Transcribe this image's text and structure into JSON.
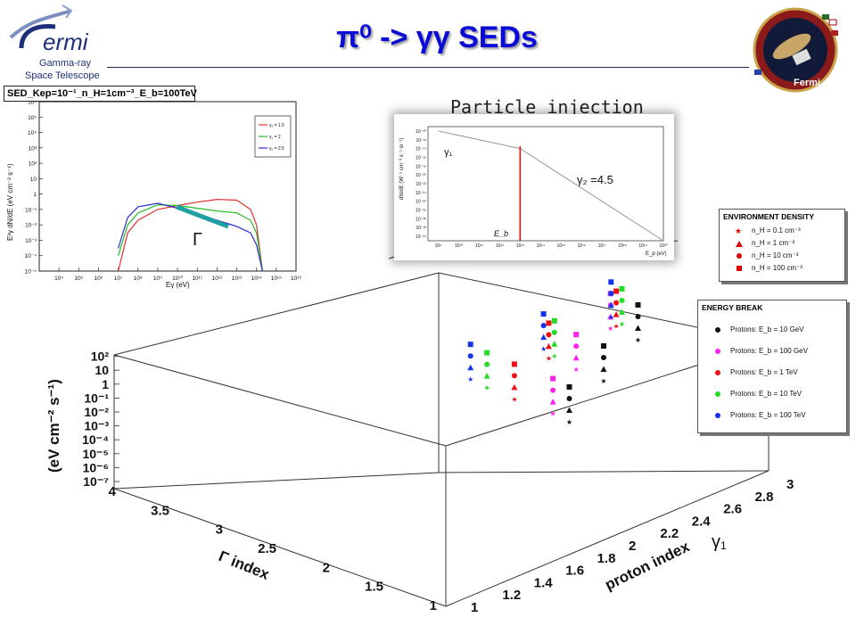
{
  "header": {
    "title": "π⁰ -> γγ SEDs",
    "left_logo_text": [
      "ermi",
      "Gamma-ray",
      "Space Telescope"
    ],
    "right_badge_text": [
      "Gamma-ray Space Telescope",
      "Fermi"
    ]
  },
  "sed_panel": {
    "title": "SED_Kep=10⁻¹_n_H=1cm⁻³_E_b=100TeV",
    "ylabel": "E²γ dN/dE (eV cm⁻² s⁻¹)",
    "xlabel": "Eγ (eV)",
    "gamma_label": "Γ",
    "legend": [
      "γ₁ = 1.5",
      "γ₁ = 2",
      "γ₁ = 2.5"
    ]
  },
  "injection_panel": {
    "caption": "Particle injection",
    "gamma1_label": "γ₁",
    "gamma2_label": "γ₂ =4.5",
    "break_label": "E_b",
    "ylabel": "dN/dE (W⁻¹ cm⁻³ s⁻¹ sr⁻¹)",
    "xlabel": "E_p (eV)"
  },
  "env_legend": {
    "title": "ENVIRONMENT DENSITY",
    "items": [
      {
        "marker": "star",
        "label": "n_H = 0.1 cm⁻³"
      },
      {
        "marker": "triangle",
        "label": "n_H = 1 cm⁻³"
      },
      {
        "marker": "circle",
        "label": "n_H = 10 cm⁻³"
      },
      {
        "marker": "square",
        "label": "n_H = 100 cm⁻³"
      }
    ],
    "color": "#dd0000"
  },
  "eb_legend": {
    "title": "ENERGY BREAK",
    "items": [
      {
        "label": "Protons: E_b = 10 GeV",
        "color": "#111111"
      },
      {
        "label": "Protons: E_b = 100 GeV",
        "color": "#ff22ee"
      },
      {
        "label": "Protons: E_b = 1 TeV",
        "color": "#ee1111"
      },
      {
        "label": "Protons: E_b = 10 TeV",
        "color": "#22dd22"
      },
      {
        "label": "Protons: E_b = 100 TeV",
        "color": "#1133ee"
      }
    ]
  },
  "chart_data": [
    {
      "type": "line",
      "title": "SED_Kep=10⁻¹_n_H=1cm⁻³_E_b=100TeV",
      "xlabel": "Eγ (eV)",
      "ylabel": "E²γ dN/dE (eV cm⁻² s⁻¹)",
      "x_scale": "log",
      "y_scale": "log",
      "xlim": [
        1000,
        1e+16
      ],
      "ylim": [
        1e-05,
        1000000.0
      ],
      "x_ticks": [
        "10⁴",
        "10⁵",
        "10⁶",
        "10⁷",
        "10⁸",
        "10⁹",
        "10¹⁰",
        "10¹¹",
        "10¹²",
        "10¹³",
        "10¹⁴",
        "10¹⁵",
        "10¹⁶"
      ],
      "y_ticks": [
        "10⁻⁵",
        "10⁻⁴",
        "10⁻³",
        "10⁻²",
        "10⁻¹",
        "1",
        "10",
        "10²",
        "10³",
        "10⁴",
        "10⁵",
        "10⁶"
      ],
      "series": [
        {
          "name": "γ₁ = 1.5",
          "color": "#e23030",
          "x": [
            10000000.0,
            30000000.0,
            100000000.0,
            1000000000.0,
            10000000000.0,
            100000000000.0,
            1000000000000.0,
            10000000000000.0,
            50000000000000.0,
            100000000000000.0,
            200000000000000.0
          ],
          "y": [
            1e-05,
            0.003,
            0.02,
            0.1,
            0.18,
            0.3,
            0.45,
            0.4,
            0.1,
            0.01,
            1e-05
          ]
        },
        {
          "name": "γ₁ = 2",
          "color": "#22bb22",
          "x": [
            10000000.0,
            30000000.0,
            100000000.0,
            1000000000.0,
            10000000000.0,
            100000000000.0,
            1000000000000.0,
            10000000000000.0,
            50000000000000.0,
            100000000000000.0,
            200000000000000.0
          ],
          "y": [
            0.0001,
            0.01,
            0.06,
            0.2,
            0.18,
            0.12,
            0.08,
            0.06,
            0.02,
            0.003,
            1e-05
          ]
        },
        {
          "name": "γ₁ = 2.5",
          "color": "#2a2ad0",
          "x": [
            10000000.0,
            30000000.0,
            100000000.0,
            1000000000.0,
            10000000000.0,
            100000000000.0,
            1000000000000.0,
            10000000000000.0,
            50000000000000.0,
            100000000000000.0,
            200000000000000.0
          ],
          "y": [
            0.0003,
            0.03,
            0.15,
            0.25,
            0.12,
            0.05,
            0.02,
            0.008,
            0.003,
            0.0005,
            1e-05
          ]
        }
      ],
      "legend_position": "top-right",
      "annotation": "Γ"
    },
    {
      "type": "line",
      "title": "Particle injection",
      "xlabel": "E_p (eV)",
      "x_scale": "log",
      "y_scale": "log",
      "x_ticks": [
        "10⁹",
        "10¹⁰",
        "10¹¹",
        "10¹²",
        "10¹³",
        "10¹⁴",
        "10¹⁵",
        "10¹⁶",
        "10¹⁷",
        "10¹⁸",
        "10¹⁹",
        "10²⁰"
      ],
      "y_ticks": [
        "10⁻¹⁰",
        "10⁻¹²",
        "10⁻¹⁴",
        "10⁻¹⁶",
        "10⁻¹⁸",
        "10⁻²⁰",
        "10⁻²²",
        "10⁻²⁴",
        "10⁻²⁶",
        "10⁻²⁸",
        "10⁻³⁰",
        "10⁻³²",
        "10⁻³⁴"
      ],
      "series": [
        {
          "name": "",
          "color": "#999999",
          "x": [
            1000000000.0,
            10000000000000.0,
            1e+20
          ],
          "y": [
            1e-10,
            1e-14,
            1e-35
          ]
        }
      ],
      "break_energy_eV": 10000000000000.0,
      "annotations": [
        "γ₁",
        "γ₂ =4.5",
        "E_b"
      ]
    },
    {
      "type": "scatter",
      "title": "",
      "zlabel": "(eV cm⁻² s⁻¹)",
      "ylabel": "Γ index",
      "xlabel": "proton index",
      "xlabel_extra": "γ₁",
      "z_ticks": [
        "10⁻⁷",
        "10⁻⁶",
        "10⁻⁵",
        "10⁻⁴",
        "10⁻³",
        "10⁻²",
        "10⁻¹",
        "1",
        "10",
        "10²"
      ],
      "y_ticks": [
        "1",
        "1.5",
        "2",
        "2.5",
        "3",
        "3.5",
        "4"
      ],
      "x_ticks": [
        "1",
        "1.2",
        "1.4",
        "1.6",
        "1.8",
        "2",
        "2.2",
        "2.4",
        "2.6",
        "2.8",
        "3"
      ],
      "series": [
        {
          "name": "Protons: E_b = 10 GeV",
          "color": "#111111",
          "points": [
            {
              "x": 1.5,
              "gamma": 1.5
            },
            {
              "x": 2.0,
              "gamma": 2.0
            },
            {
              "x": 2.5,
              "gamma": 2.5
            }
          ]
        },
        {
          "name": "Protons: E_b = 100 GeV",
          "color": "#ff22ee",
          "points": [
            {
              "x": 1.5,
              "gamma": 1.6
            },
            {
              "x": 2.0,
              "gamma": 2.2
            },
            {
              "x": 2.5,
              "gamma": 2.7
            }
          ]
        },
        {
          "name": "Protons: E_b = 1 TeV",
          "color": "#ee1111",
          "points": [
            {
              "x": 1.5,
              "gamma": 1.9
            },
            {
              "x": 2.0,
              "gamma": 2.4
            },
            {
              "x": 2.5,
              "gamma": 2.6
            }
          ]
        },
        {
          "name": "Protons: E_b = 10 TeV",
          "color": "#22dd22",
          "points": [
            {
              "x": 1.5,
              "gamma": 2.1
            },
            {
              "x": 2.0,
              "gamma": 2.3
            },
            {
              "x": 2.5,
              "gamma": 2.5
            }
          ]
        },
        {
          "name": "Protons: E_b = 100 TeV",
          "color": "#1133ee",
          "points": [
            {
              "x": 1.5,
              "gamma": 2.2
            },
            {
              "x": 2.0,
              "gamma": 2.35
            },
            {
              "x": 2.5,
              "gamma": 2.55
            }
          ]
        }
      ],
      "density_markers": [
        "n_H = 0.1 cm⁻³",
        "n_H = 1 cm⁻³",
        "n_H = 10 cm⁻³",
        "n_H = 100 cm⁻³"
      ]
    }
  ]
}
